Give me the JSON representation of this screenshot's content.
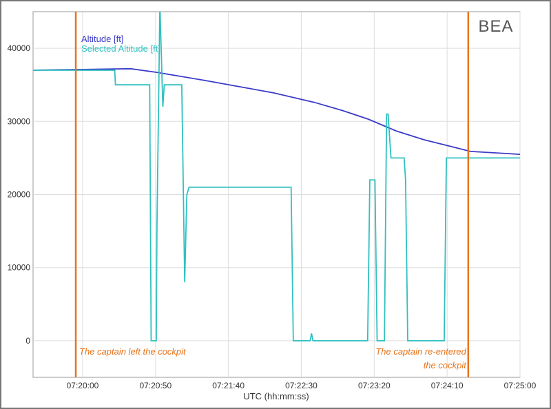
{
  "chart_data": {
    "type": "line",
    "logo": "BEA",
    "xlabel": "UTC (hh:mm:ss)",
    "xlim": [
      -34,
      300
    ],
    "xticks": [
      {
        "value": 0,
        "label": "07:20:00"
      },
      {
        "value": 50,
        "label": "07:20:50"
      },
      {
        "value": 100,
        "label": "07:21:40"
      },
      {
        "value": 150,
        "label": "07:22:30"
      },
      {
        "value": 200,
        "label": "07:23:20"
      },
      {
        "value": 250,
        "label": "07:24:10"
      },
      {
        "value": 300,
        "label": "07:25:00"
      }
    ],
    "ylim": [
      -5000,
      45000
    ],
    "yticks": [
      0,
      10000,
      20000,
      30000,
      40000
    ],
    "grid": true,
    "legend": "top-left",
    "series": [
      {
        "name": "Altitude [ft]",
        "color": "#3b3bc9",
        "x": [
          -34,
          33,
          51,
          84,
          131,
          159,
          178,
          196,
          215,
          234,
          252,
          266,
          300
        ],
        "values": [
          37000,
          37200,
          36700,
          35600,
          33900,
          32600,
          31500,
          30300,
          28700,
          27500,
          26600,
          25900,
          25500
        ]
      },
      {
        "name": "Selected Altitude [ft]",
        "color": "#30c0c0",
        "x": [
          -34,
          22,
          22.5,
          46,
          47,
          50.5,
          51,
          53,
          55,
          56,
          68,
          70,
          71.5,
          73,
          143,
          144.5,
          156,
          157,
          158,
          195.5,
          197,
          200.5,
          202,
          207,
          208.5,
          209.5,
          211.5,
          220.5,
          221.5,
          223,
          248,
          249.5,
          300
        ],
        "values": [
          37000,
          37000,
          35000,
          35000,
          0,
          0,
          16000,
          46000,
          32000,
          35000,
          35000,
          8000,
          20000,
          21000,
          21000,
          0,
          0,
          1000,
          0,
          0,
          22000,
          22000,
          0,
          0,
          31000,
          31000,
          25000,
          25000,
          22000,
          0,
          0,
          25000,
          25000
        ]
      }
    ],
    "events": [
      {
        "x": -4.7,
        "color": "#e8731a",
        "lines": [
          "The captain left the cockpit"
        ]
      },
      {
        "x": 264.5,
        "color": "#e8731a",
        "lines": [
          "The captain re-entered",
          "the cockpit"
        ]
      }
    ]
  }
}
